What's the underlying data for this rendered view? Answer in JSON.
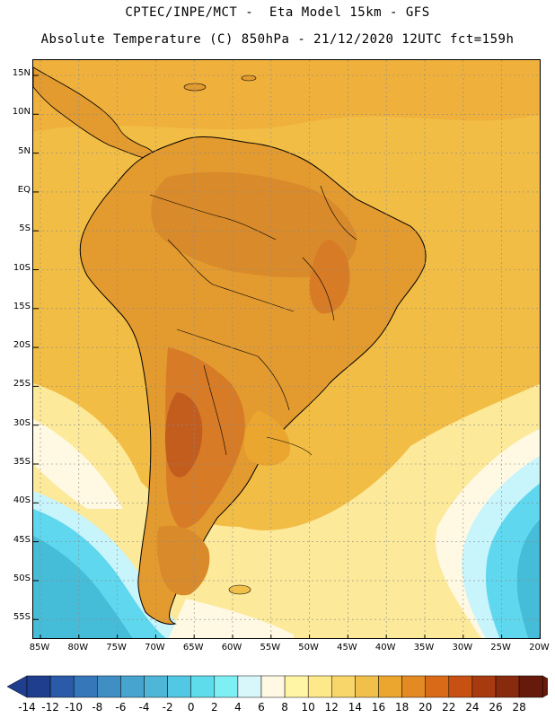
{
  "header": {
    "line1": "CPTEC/INPE/MCT -  Eta Model 15km - GFS",
    "line2": "Absolute Temperature (C) 850hPa - 21/12/2020 12UTC fct=159h"
  },
  "map": {
    "lat_labels": [
      "15N",
      "10N",
      "5N",
      "EQ",
      "5S",
      "10S",
      "15S",
      "20S",
      "25S",
      "30S",
      "35S",
      "40S",
      "45S",
      "50S",
      "55S"
    ],
    "lon_labels": [
      "85W",
      "80W",
      "75W",
      "70W",
      "65W",
      "60W",
      "55W",
      "50W",
      "45W",
      "40W",
      "35W",
      "30W",
      "25W",
      "20W"
    ],
    "colors": {
      "ocean_warm": "#f2bd45",
      "land_hot": "#e39a2f",
      "land_hotter": "#d77b26",
      "land_hottest": "#c25d1e",
      "pale": "#fff0a8",
      "cream": "#fff8e2",
      "light_cyan": "#c8f4fb",
      "cyan": "#5fd7ee",
      "teal": "#45bcd8"
    }
  },
  "colorbar": {
    "labels": [
      "-14",
      "-12",
      "-10",
      "-8",
      "-6",
      "-4",
      "-2",
      "0",
      "2",
      "4",
      "6",
      "8",
      "10",
      "12",
      "14",
      "16",
      "18",
      "20",
      "22",
      "24",
      "26",
      "28"
    ],
    "colors": [
      "#1f3f8e",
      "#2a5aa8",
      "#3577b8",
      "#3f8fc4",
      "#47a4cf",
      "#4fb6d8",
      "#52c8e4",
      "#5fdcec",
      "#7ef0f4",
      "#d7f7fb",
      "#fff8e2",
      "#fff5a5",
      "#fde98a",
      "#f8d66a",
      "#f0c04a",
      "#eaa62e",
      "#e38a23",
      "#d86a18",
      "#c65112",
      "#a83a10",
      "#882a0e",
      "#661a0c"
    ],
    "low_cap_color": "#1f3f8e",
    "high_cap_color": "#661a0c"
  }
}
